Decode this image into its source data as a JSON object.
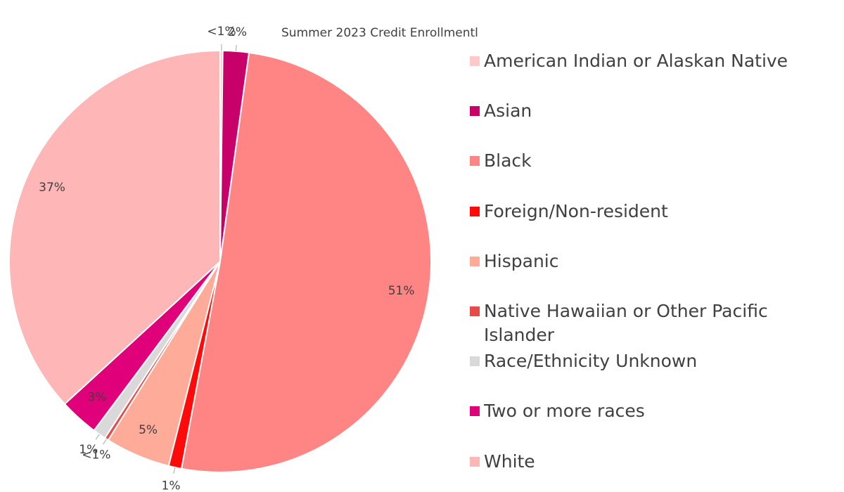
{
  "chart_data": {
    "type": "pie",
    "title": "Summer 2023 Credit Enrollmentl",
    "categories": [
      "American Indian or Alaskan Native",
      "Asian",
      "Black",
      "Foreign/Non-resident",
      "Hispanic",
      "Native Hawaiian or Other Pacific Islander",
      "Race/Ethnicity Unknown",
      "Two or more races",
      "White"
    ],
    "values": [
      0.2,
      2,
      51,
      1,
      5,
      0.3,
      1,
      3,
      37
    ],
    "value_labels": [
      "<1%",
      "2%",
      "51%",
      "1%",
      "5%",
      "<1%",
      "1%",
      "3%",
      "37%"
    ],
    "colors": [
      "#ffc9c9",
      "#c8006a",
      "#ff8585",
      "#ff0a0a",
      "#ffab99",
      "#e84a4a",
      "#d9d9d9",
      "#e0007a",
      "#ffb6b6"
    ],
    "legend": "right"
  }
}
